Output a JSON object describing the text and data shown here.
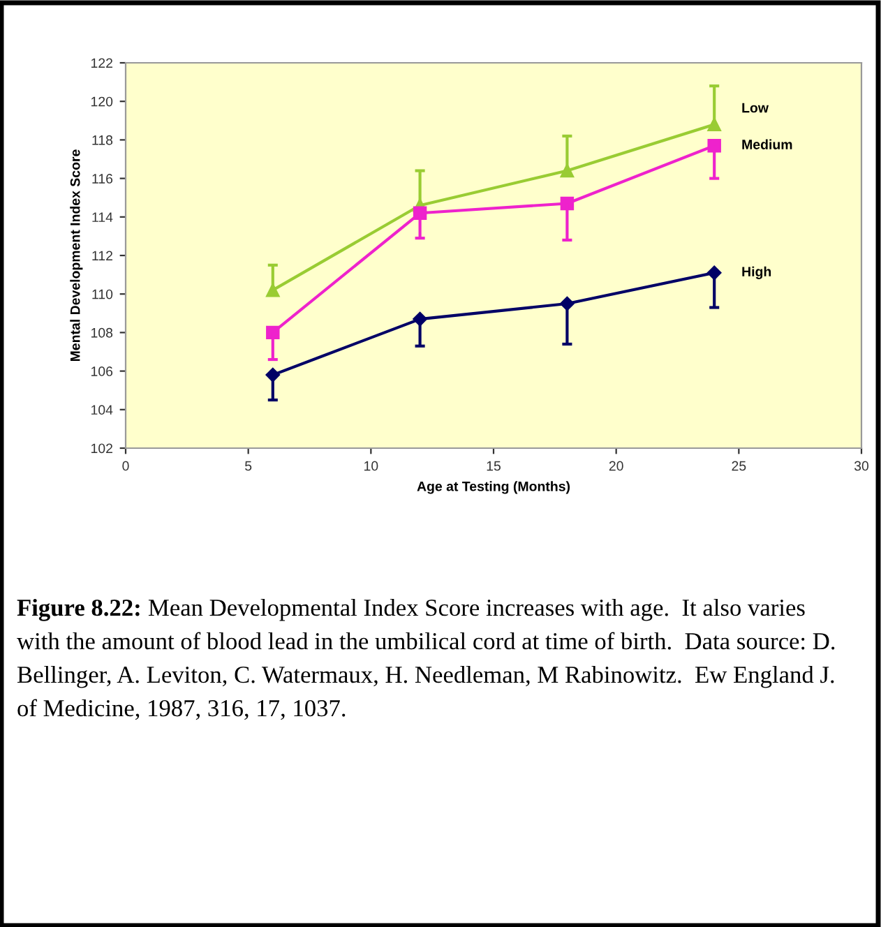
{
  "chart_data": {
    "type": "line",
    "xlabel": "Age at Testing (Months)",
    "ylabel": "Mental Development Index Score",
    "x": [
      6,
      12,
      18,
      24
    ],
    "series": [
      {
        "name": "Low",
        "color": "#99cc33",
        "marker": "triangle",
        "values": [
          110.2,
          114.6,
          116.4,
          118.8
        ],
        "errors": [
          [
            110.2,
            111.5
          ],
          [
            114.6,
            116.4
          ],
          [
            116.4,
            118.2
          ],
          [
            118.8,
            120.8
          ]
        ]
      },
      {
        "name": "Medium",
        "color": "#ee22cc",
        "marker": "square",
        "values": [
          108.0,
          114.2,
          114.7,
          117.7
        ],
        "errors": [
          [
            106.6,
            108.0
          ],
          [
            112.9,
            114.2
          ],
          [
            112.8,
            114.7
          ],
          [
            116.0,
            117.7
          ]
        ]
      },
      {
        "name": "High",
        "color": "#000066",
        "marker": "diamond",
        "values": [
          105.8,
          108.7,
          109.5,
          111.1
        ],
        "errors": [
          [
            104.5,
            105.8
          ],
          [
            107.3,
            108.7
          ],
          [
            107.4,
            109.5
          ],
          [
            109.3,
            111.1
          ]
        ]
      }
    ],
    "xlim": [
      0,
      30
    ],
    "xticks": [
      0,
      5,
      10,
      15,
      20,
      25,
      30
    ],
    "ylim": [
      102,
      122
    ],
    "yticks": [
      102,
      104,
      106,
      108,
      110,
      112,
      114,
      116,
      118,
      120,
      122
    ],
    "grid": false,
    "legend": false,
    "annotations": [
      "Figure 8.22:",
      "Mean Developmental Index Score increases with age.  It also varies with the amount of blood lead in the umbilical cord at time of birth.  Data source: D. Bellinger, A. Leviton, C. Watermaux, H. Needleman, M Rabinowitz.  Ew England J. of Medicine, 1987, 316, 17, 1037."
    ]
  }
}
